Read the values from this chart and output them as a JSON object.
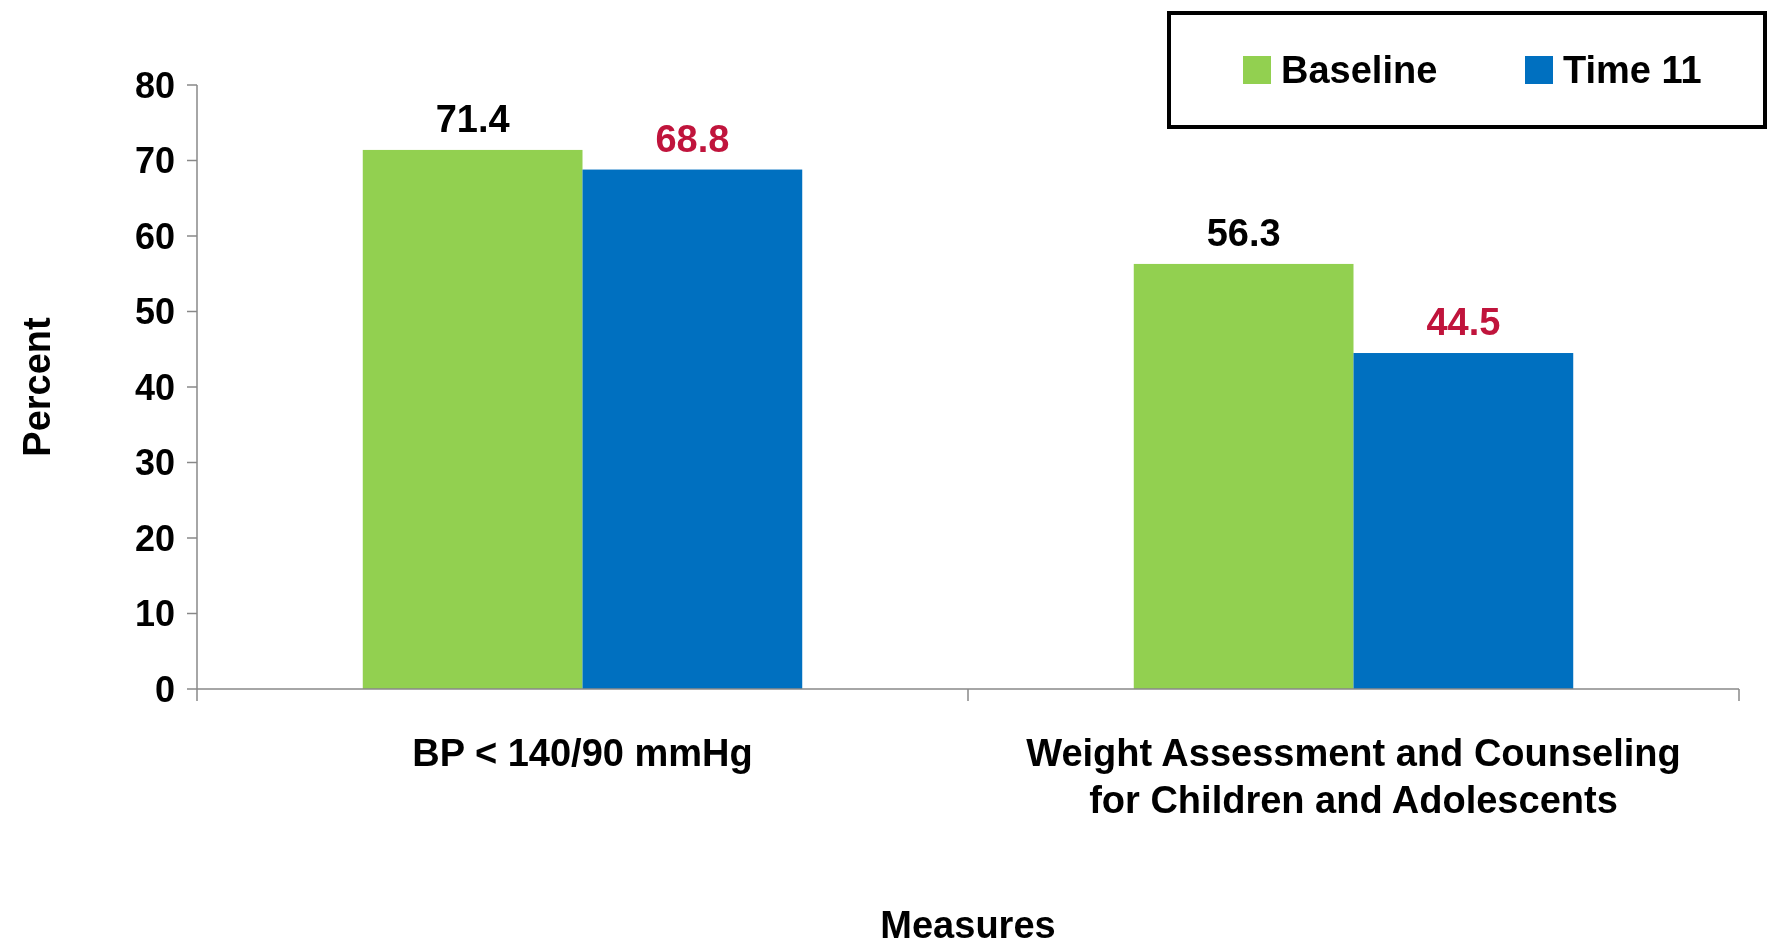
{
  "chart_data": {
    "type": "bar",
    "xlabel": "Measures",
    "ylabel": "Percent",
    "categories": [
      "BP < 140/90 mmHg",
      "Weight Assessment and Counseling for Children and Adolescents"
    ],
    "series": [
      {
        "name": "Baseline",
        "color": "#92d050",
        "values": [
          71.4,
          56.3
        ]
      },
      {
        "name": "Time 11",
        "color": "#0070c0",
        "values": [
          68.8,
          44.5
        ]
      }
    ],
    "ylim": [
      0,
      80
    ],
    "yticks": [
      0,
      10,
      20,
      30,
      40,
      50,
      60,
      70,
      80
    ],
    "grid": false,
    "legend": "top right",
    "data_labels": true
  }
}
